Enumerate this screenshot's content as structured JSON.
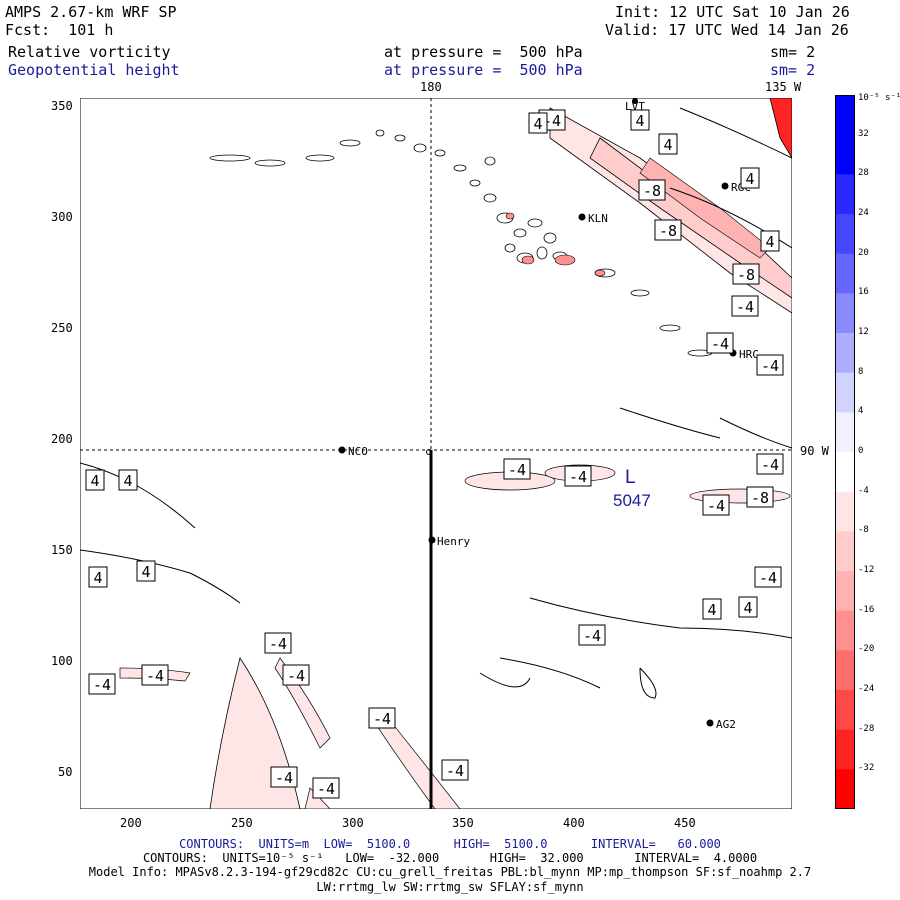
{
  "header": {
    "model": "AMPS 2.67-km WRF SP",
    "init": "Init: 12 UTC Sat 10 Jan 26",
    "fcst": "Fcst:  101 h",
    "valid": "Valid: 17 UTC Wed 14 Jan 26",
    "field1": "Relative vorticity",
    "field1_level": "at pressure =  500 hPa",
    "field1_sm": "sm= 2",
    "field2": "Geopotential height",
    "field2_level": "at pressure =  500 hPa",
    "field2_sm": "sm= 2"
  },
  "map_labels": {
    "lon_180": "180",
    "lon_135w": "135 W",
    "lat_90w": "90 W",
    "low_label": "L",
    "low_value": "5047"
  },
  "stations": [
    {
      "name": "NCO"
    },
    {
      "name": "Henry"
    },
    {
      "name": "KLN"
    },
    {
      "name": "RGC"
    },
    {
      "name": "HRC"
    },
    {
      "name": "AG2"
    },
    {
      "name": "LVT"
    }
  ],
  "axes": {
    "x_ticks": [
      "200",
      "250",
      "300",
      "350",
      "400",
      "450"
    ],
    "y_ticks": [
      "350",
      "300",
      "250",
      "200",
      "150",
      "100",
      "50"
    ]
  },
  "colorbar": {
    "unit_label": "10⁻⁵ s⁻¹",
    "labels": [
      "32",
      "28",
      "24",
      "20",
      "16",
      "12",
      "8",
      "4",
      "0",
      "-4",
      "-8",
      "-12",
      "-16",
      "-20",
      "-24",
      "-28",
      "-32"
    ],
    "colors": [
      "#0000ff",
      "#2a2aff",
      "#4646ff",
      "#6666ff",
      "#8a8aff",
      "#aeaeff",
      "#d2d2ff",
      "#f0f0ff",
      "#ffffff",
      "#ffe6e6",
      "#ffcccc",
      "#ffb2b2",
      "#ff9090",
      "#ff6e6e",
      "#ff4848",
      "#ff2424",
      "#ff0000"
    ]
  },
  "contour_labels": [
    {
      "text": "-4"
    },
    {
      "text": "4"
    },
    {
      "text": "4"
    },
    {
      "text": "4"
    },
    {
      "text": "-8"
    },
    {
      "text": "4"
    },
    {
      "text": "-8"
    },
    {
      "text": "4"
    },
    {
      "text": "-8"
    },
    {
      "text": "-4"
    },
    {
      "text": "-4"
    },
    {
      "text": "-4"
    },
    {
      "text": "-4"
    },
    {
      "text": "-4"
    },
    {
      "text": "-4"
    },
    {
      "text": "-8"
    },
    {
      "text": "-4"
    },
    {
      "text": "4"
    },
    {
      "text": "4"
    },
    {
      "text": "4"
    },
    {
      "text": "4"
    },
    {
      "text": "-4"
    },
    {
      "text": "4"
    },
    {
      "text": "4"
    },
    {
      "text": "-4"
    },
    {
      "text": "-4"
    },
    {
      "text": "-4"
    },
    {
      "text": "-4"
    },
    {
      "text": "-4"
    },
    {
      "text": "-4"
    },
    {
      "text": "-4"
    },
    {
      "text": "-4"
    },
    {
      "text": "-4"
    }
  ],
  "footer": {
    "line1": "CONTOURS:  UNITS=m  LOW=  5100.0      HIGH=  5100.0      INTERVAL=   60.000",
    "line2": "CONTOURS:  UNITS=10⁻⁵ s⁻¹   LOW=  -32.000       HIGH=  32.000       INTERVAL=  4.0000",
    "line3": "Model Info: MPASv8.2.3-194-gf29cd82c CU:cu_grell_freitas PBL:bl_mynn MP:mp_thompson SF:sf_noahmp 2.7",
    "line4": "LW:rrtmg_lw SW:rrtmg_sw SFLAY:sf_mynn"
  }
}
